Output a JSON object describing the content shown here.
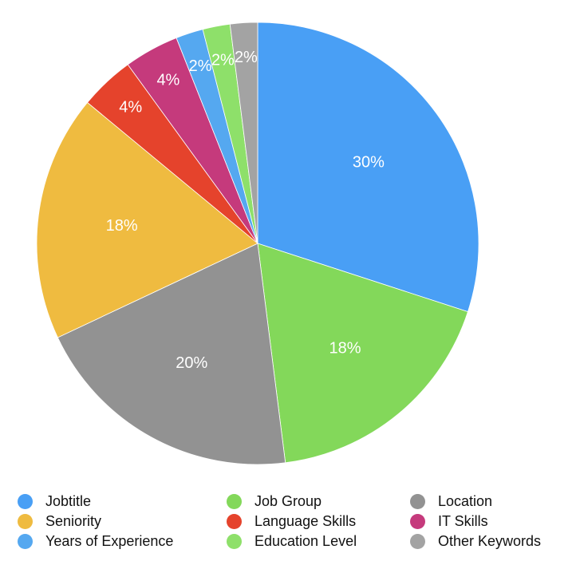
{
  "chart_data": {
    "type": "pie",
    "title": "",
    "slices": [
      {
        "label": "Jobtitle",
        "value": 30,
        "data_label": "30%",
        "color": "#499ff5"
      },
      {
        "label": "Job Group",
        "value": 18,
        "data_label": "18%",
        "color": "#83d85a"
      },
      {
        "label": "Location",
        "value": 20,
        "data_label": "20%",
        "color": "#929292"
      },
      {
        "label": "Seniority",
        "value": 18,
        "data_label": "18%",
        "color": "#efbb40"
      },
      {
        "label": "Language Skills",
        "value": 4,
        "data_label": "4%",
        "color": "#e5432c"
      },
      {
        "label": "IT Skills",
        "value": 4,
        "data_label": "4%",
        "color": "#c53a7c"
      },
      {
        "label": "Years of Experience",
        "value": 2,
        "data_label": "2%",
        "color": "#55a8f0"
      },
      {
        "label": "Education Level",
        "value": 2,
        "data_label": "2%",
        "color": "#8ee06a"
      },
      {
        "label": "Other Keywords",
        "value": 2,
        "data_label": "2%",
        "color": "#a3a3a3"
      }
    ],
    "start_angle": "12 o'clock",
    "direction": "clockwise",
    "label_color": "#ffffff",
    "legend_position": "bottom",
    "legend_columns": 3
  }
}
